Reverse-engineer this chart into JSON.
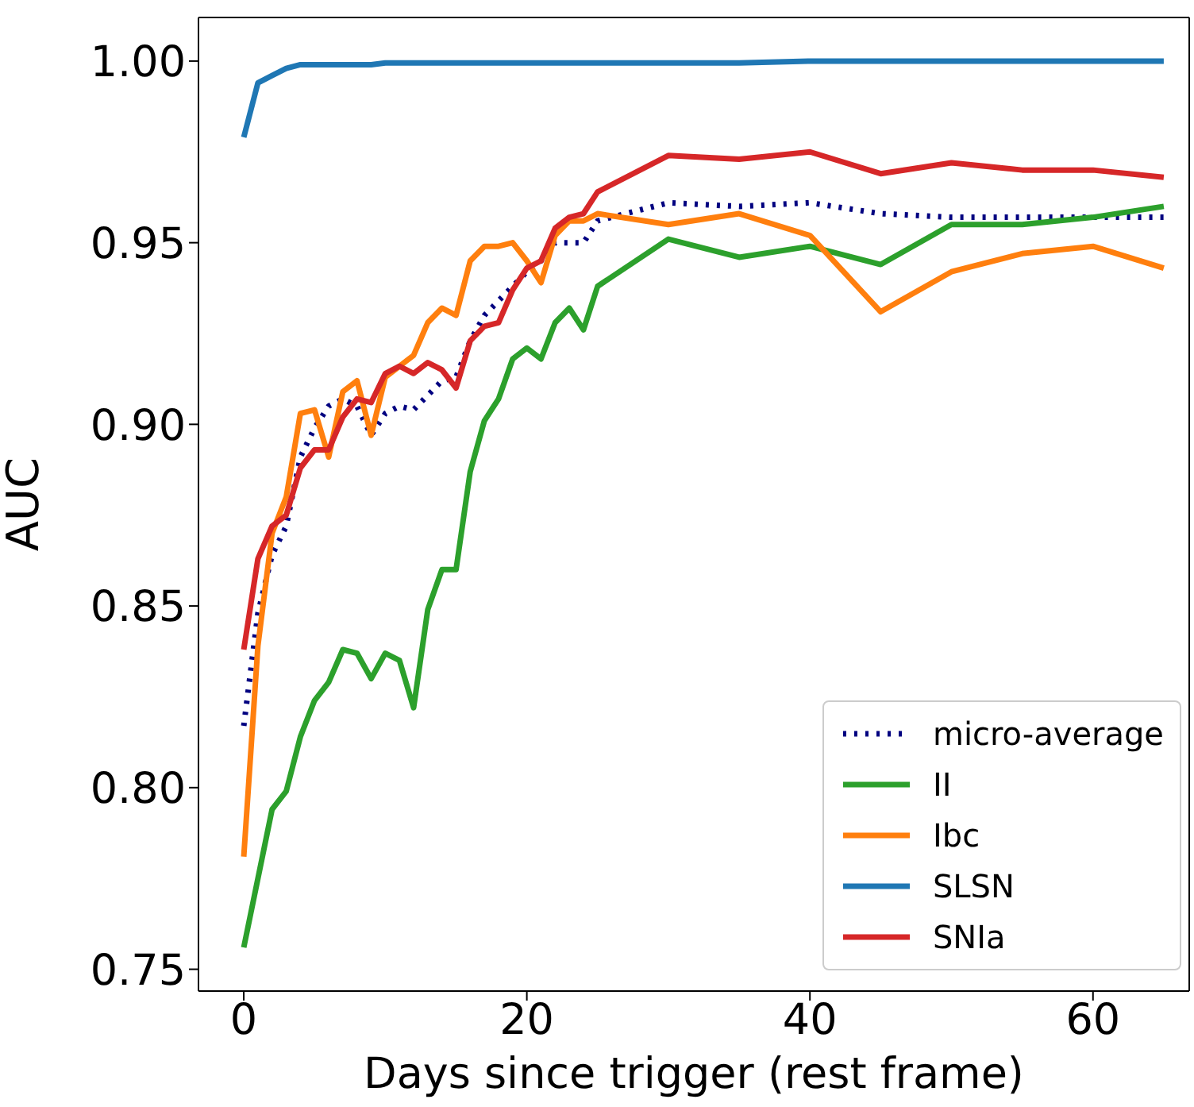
{
  "chart_data": {
    "type": "line",
    "xlabel": "Days since trigger (rest frame)",
    "ylabel": "AUC",
    "x": [
      0,
      1,
      2,
      3,
      4,
      5,
      6,
      7,
      8,
      9,
      10,
      11,
      12,
      13,
      14,
      15,
      16,
      17,
      18,
      19,
      20,
      21,
      22,
      23,
      24,
      25,
      30,
      35,
      40,
      45,
      50,
      55,
      60,
      65
    ],
    "series": [
      {
        "name": "micro-average",
        "color": "#000080",
        "line_style": "dotted",
        "values": [
          0.817,
          0.848,
          0.864,
          0.872,
          0.891,
          0.899,
          0.905,
          0.907,
          0.905,
          0.897,
          0.903,
          0.905,
          0.904,
          0.908,
          0.912,
          0.913,
          0.923,
          0.93,
          0.934,
          0.938,
          0.942,
          0.945,
          0.95,
          0.95,
          0.95,
          0.956,
          0.961,
          0.96,
          0.961,
          0.958,
          0.957,
          0.957,
          0.957,
          0.957
        ]
      },
      {
        "name": "II",
        "color": "#2ca02c",
        "line_style": "solid",
        "values": [
          0.756,
          0.775,
          0.794,
          0.799,
          0.814,
          0.824,
          0.829,
          0.838,
          0.837,
          0.83,
          0.837,
          0.835,
          0.822,
          0.849,
          0.86,
          0.86,
          0.887,
          0.901,
          0.907,
          0.918,
          0.921,
          0.918,
          0.928,
          0.932,
          0.926,
          0.938,
          0.951,
          0.946,
          0.949,
          0.944,
          0.955,
          0.955,
          0.957,
          0.96
        ]
      },
      {
        "name": "Ibc",
        "color": "#ff7f0e",
        "line_style": "solid",
        "values": [
          0.781,
          0.839,
          0.87,
          0.88,
          0.903,
          0.904,
          0.891,
          0.909,
          0.912,
          0.897,
          0.913,
          0.916,
          0.919,
          0.928,
          0.932,
          0.93,
          0.945,
          0.949,
          0.949,
          0.95,
          0.945,
          0.939,
          0.952,
          0.956,
          0.956,
          0.958,
          0.955,
          0.958,
          0.952,
          0.931,
          0.942,
          0.947,
          0.949,
          0.943
        ]
      },
      {
        "name": "SLSN",
        "color": "#1f77b4",
        "line_style": "solid",
        "values": [
          0.979,
          0.994,
          0.996,
          0.998,
          0.999,
          0.999,
          0.999,
          0.999,
          0.999,
          0.999,
          0.9995,
          0.9995,
          0.9995,
          0.9995,
          0.9995,
          0.9995,
          0.9995,
          0.9995,
          0.9995,
          0.9995,
          0.9995,
          0.9995,
          0.9995,
          0.9995,
          0.9995,
          0.9995,
          0.9995,
          0.9995,
          1.0,
          1.0,
          1.0,
          1.0,
          1.0,
          1.0
        ]
      },
      {
        "name": "SNIa",
        "color": "#d62728",
        "line_style": "solid",
        "values": [
          0.838,
          0.863,
          0.872,
          0.875,
          0.888,
          0.893,
          0.893,
          0.902,
          0.907,
          0.906,
          0.914,
          0.916,
          0.914,
          0.917,
          0.915,
          0.91,
          0.923,
          0.927,
          0.928,
          0.937,
          0.943,
          0.945,
          0.954,
          0.957,
          0.958,
          0.964,
          0.974,
          0.973,
          0.975,
          0.969,
          0.972,
          0.97,
          0.97,
          0.968
        ]
      }
    ],
    "xlim": [
      -3.2,
      66.8
    ],
    "xticks": [
      0,
      20,
      40,
      60
    ],
    "ylim": [
      0.744,
      1.012
    ],
    "yticks": [
      {
        "value": 0.75,
        "label": "0.75"
      },
      {
        "value": 0.8,
        "label": "0.80"
      },
      {
        "value": 0.85,
        "label": "0.85"
      },
      {
        "value": 0.9,
        "label": "0.90"
      },
      {
        "value": 0.95,
        "label": "0.95"
      },
      {
        "value": 1.0,
        "label": "1.00"
      }
    ],
    "grid": false,
    "legend": "bottom right",
    "marker": "none"
  }
}
